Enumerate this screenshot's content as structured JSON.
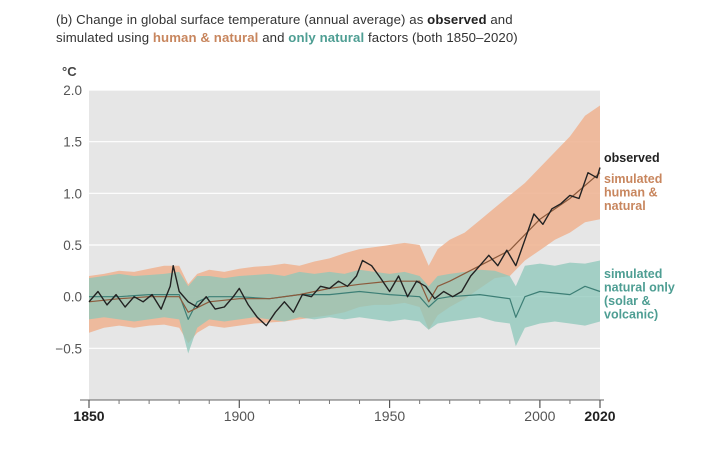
{
  "title": {
    "prefix": "(b) Change in global surface temperature (annual average) as ",
    "observed": "observed",
    "and": " and",
    "line2_prefix": "simulated using ",
    "human": "human & natural",
    "and2": " and ",
    "natural": "only natural",
    "suffix": " factors (both 1850–2020)"
  },
  "colors": {
    "plot_bg": "#e6e6e6",
    "grid": "#ffffff",
    "observed": "#222222",
    "human_band": "#efb18f",
    "human_line": "#8c5a3c",
    "human_label": "#c8865e",
    "natural_band": "#8cc7ba",
    "natural_line": "#3d7f76",
    "natural_label": "#4e9e93",
    "axis_text": "#555555"
  },
  "chart_data": {
    "type": "line",
    "title": "(b) Change in global surface temperature (annual average) as observed and simulated using human & natural and only natural factors (both 1850–2020)",
    "ylabel": "°C",
    "xlim": [
      1850,
      2020
    ],
    "ylim": [
      -1.0,
      2.0
    ],
    "yticks": [
      {
        "v": 2.0,
        "label": "2.0"
      },
      {
        "v": 1.5,
        "label": "1.5"
      },
      {
        "v": 1.0,
        "label": "1.0"
      },
      {
        "v": 0.5,
        "label": "0.5"
      },
      {
        "v": 0.0,
        "label": "0.0"
      },
      {
        "v": -0.5,
        "label": "−0.5"
      }
    ],
    "xticks": [
      {
        "v": 1850,
        "label": "1850",
        "bold": true
      },
      {
        "v": 1900,
        "label": "1900",
        "bold": false
      },
      {
        "v": 1950,
        "label": "1950",
        "bold": false
      },
      {
        "v": 2000,
        "label": "2000",
        "bold": false
      },
      {
        "v": 2020,
        "label": "2020",
        "bold": true
      }
    ],
    "minor_xticks": [
      1860,
      1870,
      1880,
      1890,
      1910,
      1920,
      1930,
      1940,
      1960,
      1970,
      1980,
      1990,
      2010
    ],
    "grid": true,
    "bands": [
      {
        "name": "simulated human & natural range",
        "x": [
          1850,
          1855,
          1860,
          1865,
          1870,
          1875,
          1880,
          1883,
          1886,
          1890,
          1895,
          1900,
          1905,
          1910,
          1915,
          1920,
          1925,
          1930,
          1935,
          1940,
          1945,
          1950,
          1955,
          1960,
          1963,
          1966,
          1970,
          1975,
          1980,
          1985,
          1990,
          1995,
          2000,
          2005,
          2010,
          2015,
          2020
        ],
        "upper": [
          0.2,
          0.22,
          0.25,
          0.24,
          0.27,
          0.3,
          0.3,
          0.12,
          0.22,
          0.26,
          0.24,
          0.27,
          0.29,
          0.3,
          0.32,
          0.3,
          0.34,
          0.37,
          0.42,
          0.46,
          0.48,
          0.5,
          0.52,
          0.5,
          0.3,
          0.46,
          0.55,
          0.62,
          0.74,
          0.86,
          0.98,
          1.1,
          1.25,
          1.4,
          1.55,
          1.75,
          1.85
        ],
        "lower": [
          -0.35,
          -0.3,
          -0.28,
          -0.3,
          -0.28,
          -0.27,
          -0.3,
          -0.45,
          -0.35,
          -0.28,
          -0.3,
          -0.28,
          -0.26,
          -0.25,
          -0.24,
          -0.22,
          -0.2,
          -0.18,
          -0.15,
          -0.1,
          -0.08,
          -0.08,
          -0.06,
          -0.1,
          -0.32,
          -0.18,
          -0.1,
          -0.02,
          0.08,
          0.18,
          0.2,
          0.35,
          0.45,
          0.55,
          0.62,
          0.72,
          0.75
        ]
      },
      {
        "name": "simulated natural only range",
        "x": [
          1850,
          1855,
          1860,
          1865,
          1870,
          1875,
          1880,
          1883,
          1886,
          1890,
          1895,
          1900,
          1905,
          1910,
          1915,
          1920,
          1925,
          1930,
          1935,
          1940,
          1945,
          1950,
          1955,
          1960,
          1963,
          1966,
          1970,
          1975,
          1980,
          1985,
          1990,
          1992,
          1995,
          2000,
          2005,
          2010,
          2015,
          2020
        ],
        "upper": [
          0.18,
          0.2,
          0.22,
          0.2,
          0.21,
          0.22,
          0.24,
          0.1,
          0.2,
          0.2,
          0.18,
          0.2,
          0.21,
          0.22,
          0.2,
          0.24,
          0.22,
          0.24,
          0.22,
          0.26,
          0.24,
          0.22,
          0.24,
          0.2,
          0.1,
          0.2,
          0.22,
          0.24,
          0.26,
          0.25,
          0.2,
          0.1,
          0.3,
          0.32,
          0.3,
          0.33,
          0.32,
          0.35
        ],
        "lower": [
          -0.22,
          -0.2,
          -0.22,
          -0.24,
          -0.22,
          -0.2,
          -0.22,
          -0.55,
          -0.3,
          -0.22,
          -0.24,
          -0.22,
          -0.2,
          -0.22,
          -0.24,
          -0.2,
          -0.22,
          -0.2,
          -0.22,
          -0.2,
          -0.22,
          -0.24,
          -0.22,
          -0.24,
          -0.32,
          -0.26,
          -0.24,
          -0.22,
          -0.2,
          -0.24,
          -0.26,
          -0.48,
          -0.3,
          -0.26,
          -0.24,
          -0.26,
          -0.28,
          -0.24
        ]
      }
    ],
    "series": [
      {
        "name": "observed",
        "x": [
          1850,
          1853,
          1856,
          1859,
          1862,
          1865,
          1868,
          1871,
          1874,
          1877,
          1878,
          1880,
          1883,
          1886,
          1889,
          1892,
          1895,
          1898,
          1900,
          1903,
          1906,
          1909,
          1912,
          1915,
          1918,
          1921,
          1924,
          1927,
          1930,
          1933,
          1936,
          1939,
          1941,
          1944,
          1947,
          1950,
          1953,
          1956,
          1959,
          1962,
          1965,
          1968,
          1971,
          1974,
          1977,
          1980,
          1983,
          1986,
          1989,
          1992,
          1995,
          1998,
          2001,
          2004,
          2007,
          2010,
          2013,
          2016,
          2019,
          2020
        ],
        "y": [
          -0.05,
          0.05,
          -0.08,
          0.02,
          -0.1,
          0.0,
          -0.05,
          0.02,
          -0.12,
          0.1,
          0.3,
          0.05,
          -0.05,
          -0.1,
          0.0,
          -0.12,
          -0.1,
          0.0,
          0.08,
          -0.08,
          -0.2,
          -0.28,
          -0.15,
          -0.05,
          -0.15,
          0.02,
          0.0,
          0.1,
          0.08,
          0.15,
          0.1,
          0.2,
          0.35,
          0.3,
          0.18,
          0.05,
          0.2,
          0.0,
          0.15,
          0.1,
          -0.02,
          0.05,
          0.0,
          0.05,
          0.2,
          0.3,
          0.4,
          0.3,
          0.45,
          0.3,
          0.55,
          0.8,
          0.7,
          0.85,
          0.9,
          0.98,
          0.95,
          1.2,
          1.15,
          1.25
        ]
      },
      {
        "name": "simulated human & natural",
        "x": [
          1850,
          1860,
          1870,
          1880,
          1883,
          1890,
          1900,
          1910,
          1920,
          1930,
          1940,
          1950,
          1960,
          1963,
          1966,
          1970,
          1980,
          1990,
          2000,
          2010,
          2020
        ],
        "y": [
          -0.05,
          -0.02,
          0.0,
          0.0,
          -0.15,
          -0.05,
          -0.02,
          -0.02,
          0.02,
          0.08,
          0.12,
          0.15,
          0.15,
          -0.05,
          0.1,
          0.15,
          0.3,
          0.45,
          0.75,
          0.95,
          1.2
        ]
      },
      {
        "name": "simulated natural only",
        "x": [
          1850,
          1860,
          1870,
          1880,
          1883,
          1886,
          1890,
          1900,
          1910,
          1920,
          1930,
          1940,
          1950,
          1960,
          1963,
          1966,
          1970,
          1980,
          1990,
          1992,
          1995,
          2000,
          2010,
          2015,
          2020
        ],
        "y": [
          0.0,
          0.0,
          0.02,
          0.02,
          -0.22,
          -0.05,
          0.0,
          0.0,
          -0.02,
          0.02,
          0.02,
          0.05,
          0.02,
          0.0,
          -0.1,
          -0.02,
          0.0,
          0.02,
          -0.02,
          -0.2,
          0.0,
          0.05,
          0.02,
          0.1,
          0.05
        ]
      }
    ],
    "labels": {
      "observed": "observed",
      "human": [
        "simulated",
        "human &",
        "natural"
      ],
      "natural": [
        "simulated",
        "natural only",
        "(solar &",
        "volcanic)"
      ]
    }
  }
}
